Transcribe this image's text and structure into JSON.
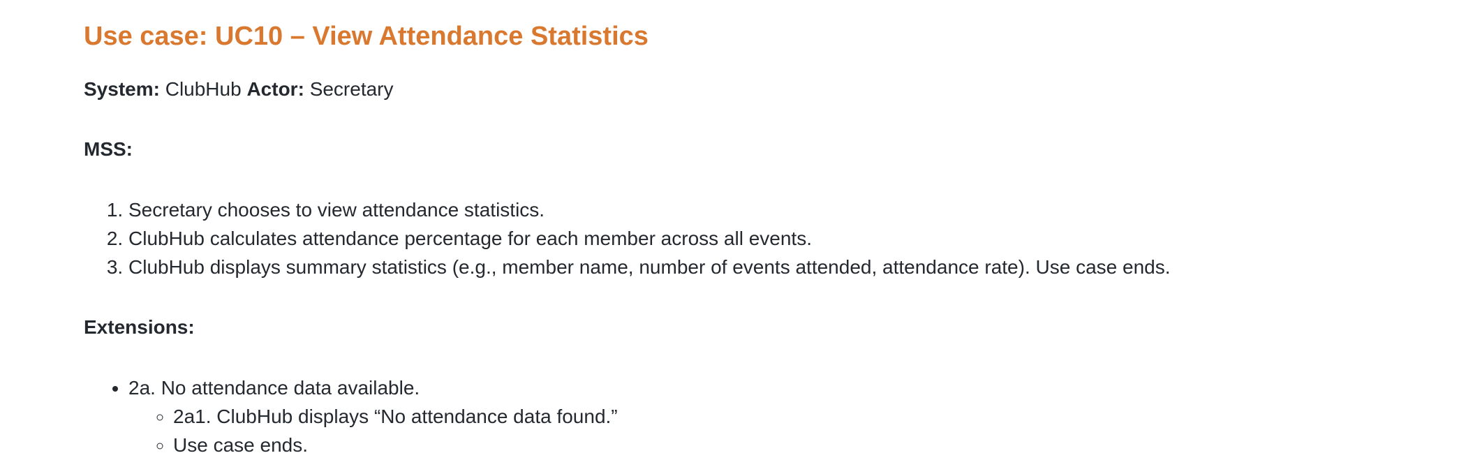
{
  "title": "Use case: UC10 – View Attendance Statistics",
  "meta": {
    "system_label": "System:",
    "system_value": "ClubHub",
    "actor_label": "Actor:",
    "actor_value": "Secretary"
  },
  "mss": {
    "heading": "MSS:",
    "steps": [
      "Secretary chooses to view attendance statistics.",
      "ClubHub calculates attendance percentage for each member across all events.",
      "ClubHub displays summary statistics (e.g., member name, number of events attended, attendance rate). Use case ends."
    ]
  },
  "extensions": {
    "heading": "Extensions:",
    "items": [
      {
        "text": "2a. No attendance data available.",
        "sub": [
          "2a1. ClubHub displays “No attendance data found.”",
          "Use case ends."
        ]
      }
    ]
  },
  "colors": {
    "title": "#d9782f",
    "text": "#24292f"
  }
}
